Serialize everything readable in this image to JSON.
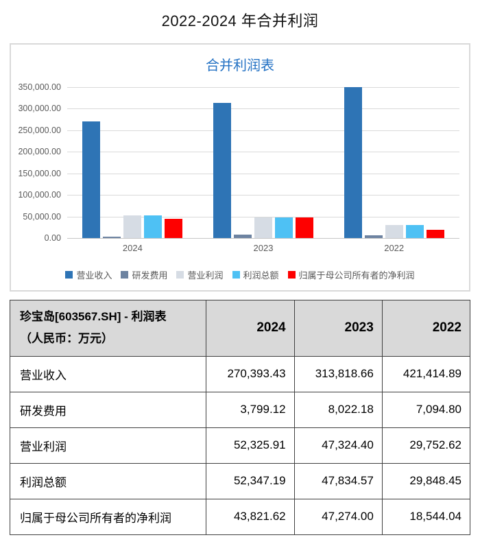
{
  "page": {
    "title": "2022-2024 年合并利润"
  },
  "chart": {
    "title": "合并利润表",
    "title_color": "#2472C4",
    "axis_text_color": "#595959",
    "grid_color": "#D9D9D9"
  },
  "chart_data": {
    "type": "bar",
    "title": "合并利润表",
    "categories": [
      "2024",
      "2023",
      "2022"
    ],
    "series": [
      {
        "name": "营业收入",
        "color": "#2E74B5",
        "values": [
          270393.43,
          313818.66,
          421414.89
        ]
      },
      {
        "name": "研发费用",
        "color": "#6D83A1",
        "values": [
          3799.12,
          8022.18,
          7094.8
        ]
      },
      {
        "name": "营业利润",
        "color": "#D6DCE4",
        "values": [
          52325.91,
          47324.4,
          29752.62
        ]
      },
      {
        "name": "利润总额",
        "color": "#4EC1F4",
        "values": [
          52347.19,
          47834.57,
          29848.45
        ]
      },
      {
        "name": "归属于母公司所有者的净利润",
        "color": "#FE0000",
        "values": [
          43821.62,
          47274.0,
          18544.04
        ]
      }
    ],
    "xlabel": "",
    "ylabel": "",
    "ylim": [
      0,
      350000
    ],
    "ytick_step": 50000,
    "grid": true,
    "legend_position": "bottom"
  },
  "table": {
    "header": {
      "title_line1": "珍宝岛[603567.SH] - 利润表",
      "title_line2": "（人民币：万元）",
      "years": [
        "2024",
        "2023",
        "2022"
      ]
    },
    "rows": [
      {
        "label": "营业收入",
        "values": [
          "270,393.43",
          "313,818.66",
          "421,414.89"
        ]
      },
      {
        "label": "研发费用",
        "values": [
          "3,799.12",
          "8,022.18",
          "7,094.80"
        ]
      },
      {
        "label": "营业利润",
        "values": [
          "52,325.91",
          "47,324.40",
          "29,752.62"
        ]
      },
      {
        "label": "利润总额",
        "values": [
          "52,347.19",
          "47,834.57",
          "29,848.45"
        ]
      },
      {
        "label": "归属于母公司所有者的净利润",
        "values": [
          "43,821.62",
          "47,274.00",
          "18,544.04"
        ]
      }
    ]
  }
}
